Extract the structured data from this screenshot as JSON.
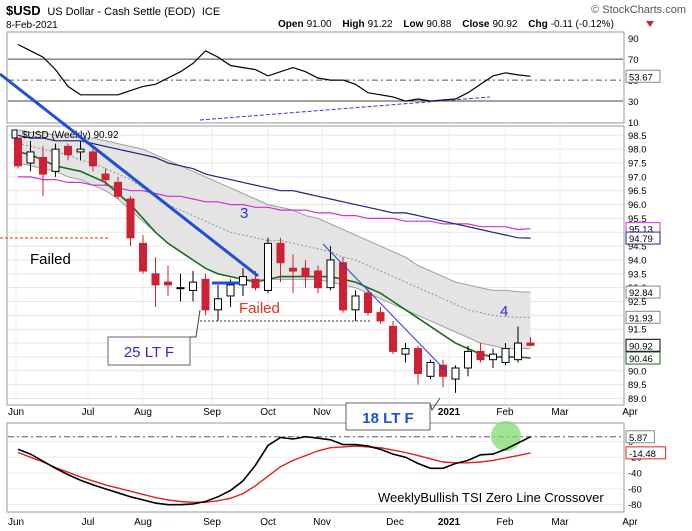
{
  "header": {
    "symbol": "$USD",
    "name": "US Dollar - Cash Settle (EOD)",
    "exchange": "ICE",
    "date": "8-Feb-2021",
    "brand": "© StockCharts.com",
    "open_label": "Open",
    "open": "91.00",
    "high_label": "High",
    "high": "91.22",
    "low_label": "Low",
    "low": "90.88",
    "close_label": "Close",
    "close": "90.92",
    "chg_label": "Chg",
    "chg": "-0.11 (-0.12%)"
  },
  "colors": {
    "up_candle": "#ffffff",
    "down_candle": "#cc2233",
    "ma_green": "#1a6b1a",
    "ma_navy": "#1a237e",
    "ma_magenta": "#cc33cc",
    "trend_blue": "#1f4fd6",
    "annotation_red": "#dd3322",
    "annotation_blue": "#2f2fc8"
  },
  "chart_data": [
    {
      "type": "line",
      "panel": "top-indicator",
      "ylim": [
        10,
        95
      ],
      "y_ticks": [
        "90",
        "70",
        "50",
        "30",
        "10"
      ],
      "levels": [
        70,
        50,
        30
      ],
      "last_value_label": "53.67",
      "y": [
        84,
        78,
        72,
        60,
        44,
        36,
        36,
        36,
        36,
        40,
        44,
        46,
        52,
        58,
        66,
        78,
        72,
        64,
        62,
        60,
        54,
        58,
        62,
        58,
        52,
        50,
        50,
        46,
        38,
        36,
        34,
        30,
        32,
        30,
        31,
        32,
        38,
        46,
        54,
        57,
        55,
        53.67
      ]
    },
    {
      "type": "candlestick",
      "panel": "price",
      "legend": "$USD (Weekly) 90.92",
      "ylim": [
        88.8,
        98.8
      ],
      "y_ticks": [
        "98.5",
        "98.0",
        "97.5",
        "97.0",
        "96.5",
        "96.0",
        "95.5",
        "95.0",
        "94.5",
        "94.0",
        "93.5",
        "93.0",
        "92.5",
        "92.0",
        "91.5",
        "91.0",
        "90.5",
        "90.0",
        "89.5",
        "89.0"
      ],
      "x_ticks": [
        "Jun",
        "Jul",
        "Aug",
        "Sep",
        "Oct",
        "Nov",
        "Dec",
        "2021",
        "Feb",
        "Mar",
        "Apr"
      ],
      "right_labels": [
        "95.13",
        "94.79",
        "92.84",
        "91.93",
        "90.92",
        "90.46"
      ],
      "ohlc": [
        [
          98.4,
          98.4,
          97.3,
          97.4
        ],
        [
          97.5,
          98.3,
          97.2,
          97.9
        ],
        [
          97.7,
          98.1,
          96.3,
          97.1
        ],
        [
          97.2,
          98.2,
          97.0,
          98.0
        ],
        [
          98.1,
          98.2,
          97.6,
          97.8
        ],
        [
          97.9,
          98.3,
          97.6,
          98.0
        ],
        [
          97.9,
          98.0,
          97.2,
          97.4
        ],
        [
          97.1,
          97.3,
          96.7,
          96.9
        ],
        [
          96.8,
          97.0,
          96.2,
          96.3
        ],
        [
          96.2,
          96.3,
          94.5,
          94.8
        ],
        [
          94.6,
          94.9,
          93.5,
          93.6
        ],
        [
          93.5,
          94.1,
          92.3,
          93.1
        ],
        [
          93.2,
          93.8,
          92.7,
          93.1
        ],
        [
          93.0,
          93.5,
          92.5,
          93.0
        ],
        [
          92.9,
          93.6,
          92.5,
          93.2
        ],
        [
          93.3,
          93.5,
          92.0,
          92.2
        ],
        [
          92.2,
          93.1,
          91.8,
          92.6
        ],
        [
          92.7,
          93.3,
          92.3,
          93.1
        ],
        [
          93.1,
          93.7,
          92.7,
          93.4
        ],
        [
          93.3,
          93.6,
          92.9,
          93.0
        ],
        [
          92.9,
          94.8,
          92.8,
          94.6
        ],
        [
          94.6,
          94.8,
          93.2,
          93.9
        ],
        [
          93.7,
          94.2,
          92.8,
          93.6
        ],
        [
          93.7,
          94.0,
          93.0,
          93.4
        ],
        [
          93.6,
          93.8,
          92.8,
          93.0
        ],
        [
          93.0,
          94.5,
          92.9,
          94.0
        ],
        [
          93.9,
          94.1,
          92.1,
          92.2
        ],
        [
          92.2,
          92.9,
          91.8,
          92.7
        ],
        [
          92.8,
          93.0,
          92.0,
          92.1
        ],
        [
          92.1,
          92.3,
          91.7,
          91.8
        ],
        [
          91.6,
          91.8,
          90.6,
          90.7
        ],
        [
          90.6,
          91.0,
          90.3,
          90.8
        ],
        [
          90.8,
          90.9,
          89.5,
          89.9
        ],
        [
          89.8,
          90.4,
          89.7,
          90.3
        ],
        [
          90.2,
          90.4,
          89.4,
          89.8
        ],
        [
          89.7,
          90.2,
          89.2,
          90.1
        ],
        [
          90.1,
          90.9,
          89.8,
          90.7
        ],
        [
          90.7,
          91.0,
          90.3,
          90.4
        ],
        [
          90.4,
          90.8,
          90.1,
          90.6
        ],
        [
          90.3,
          91.0,
          90.2,
          90.8
        ],
        [
          90.4,
          91.6,
          90.3,
          91.0
        ],
        [
          91.0,
          91.22,
          90.88,
          90.92
        ]
      ],
      "overlays": [
        {
          "name": "ma_green",
          "y": [
            97.9,
            97.8,
            97.6,
            97.4,
            97.3,
            97.2,
            97.0,
            96.8,
            96.4,
            96.0,
            95.5,
            95.0,
            94.6,
            94.3,
            94.0,
            93.7,
            93.5,
            93.4,
            93.3,
            93.2,
            93.3,
            93.4,
            93.4,
            93.4,
            93.4,
            93.4,
            93.3,
            93.2,
            93.0,
            92.8,
            92.5,
            92.2,
            91.9,
            91.6,
            91.3,
            91.0,
            90.8,
            90.6,
            90.5,
            90.5,
            90.5,
            90.46
          ]
        },
        {
          "name": "ma_navy",
          "y": [
            98.5,
            98.4,
            98.4,
            98.3,
            98.3,
            98.3,
            98.2,
            98.1,
            98.0,
            97.9,
            97.8,
            97.7,
            97.5,
            97.4,
            97.3,
            97.1,
            97.0,
            96.9,
            96.8,
            96.7,
            96.6,
            96.5,
            96.5,
            96.4,
            96.3,
            96.2,
            96.1,
            96.0,
            95.9,
            95.8,
            95.7,
            95.7,
            95.6,
            95.5,
            95.4,
            95.3,
            95.2,
            95.1,
            95.0,
            94.9,
            94.8,
            94.79
          ]
        },
        {
          "name": "ma_magenta",
          "y": [
            97.0,
            97.0,
            96.9,
            96.9,
            96.8,
            96.8,
            96.7,
            96.7,
            96.6,
            96.5,
            96.5,
            96.4,
            96.3,
            96.3,
            96.2,
            96.1,
            96.1,
            96.0,
            96.0,
            95.9,
            95.9,
            95.8,
            95.8,
            95.8,
            95.7,
            95.7,
            95.6,
            95.6,
            95.5,
            95.5,
            95.5,
            95.4,
            95.4,
            95.4,
            95.3,
            95.3,
            95.3,
            95.2,
            95.2,
            95.2,
            95.1,
            95.13
          ]
        },
        {
          "name": "band_mid",
          "y": [
            98.2,
            98.1,
            98.0,
            97.9,
            97.8,
            97.6,
            97.5,
            97.3,
            97.1,
            96.9,
            96.6,
            96.3,
            96.0,
            95.8,
            95.6,
            95.4,
            95.2,
            95.0,
            94.9,
            94.8,
            94.7,
            94.7,
            94.6,
            94.5,
            94.4,
            94.3,
            94.1,
            94.0,
            93.8,
            93.6,
            93.4,
            93.2,
            93.0,
            92.8,
            92.6,
            92.4,
            92.2,
            92.1,
            92.0,
            91.95,
            91.93,
            91.93
          ]
        },
        {
          "name": "band_upper",
          "y": [
            98.7,
            98.6,
            98.6,
            98.5,
            98.5,
            98.4,
            98.4,
            98.3,
            98.2,
            98.1,
            98.0,
            97.8,
            97.6,
            97.4,
            97.2,
            97.0,
            96.8,
            96.6,
            96.4,
            96.2,
            96.0,
            95.9,
            95.8,
            95.6,
            95.5,
            95.3,
            95.1,
            94.9,
            94.7,
            94.5,
            94.3,
            94.1,
            93.8,
            93.6,
            93.4,
            93.2,
            93.1,
            93.0,
            92.9,
            92.9,
            92.85,
            92.84
          ]
        },
        {
          "name": "band_lower",
          "y": [
            97.5,
            97.4,
            97.3,
            97.2,
            97.0,
            96.9,
            96.7,
            96.5,
            96.2,
            95.8,
            95.4,
            95.0,
            94.6,
            94.3,
            94.0,
            93.7,
            93.5,
            93.4,
            93.3,
            93.3,
            93.3,
            93.3,
            93.3,
            93.3,
            93.3,
            93.2,
            93.1,
            93.0,
            92.8,
            92.6,
            92.4,
            92.2,
            92.0,
            91.8,
            91.6,
            91.4,
            91.2,
            91.0,
            90.9,
            90.8,
            90.8,
            90.8
          ]
        }
      ],
      "annotations": {
        "failed_left": "Failed",
        "failed_mid": "Failed",
        "wave3": "3",
        "wave4": "4",
        "box1": "25 LT F",
        "box2": "18  LT F"
      }
    },
    {
      "type": "line",
      "panel": "tsi",
      "ylim": [
        -88,
        22
      ],
      "y_ticks": [
        "0",
        "-20",
        "-40",
        "-60",
        "-80"
      ],
      "value_labels": [
        "5.87",
        "-14.48"
      ],
      "annotation": "WeeklyBullish TSI Zero Line Crossover",
      "x_ticks": [
        "Jun",
        "Jul",
        "Aug",
        "Sep",
        "Oct",
        "Nov",
        "Dec",
        "2021",
        "Feb",
        "Mar",
        "Apr"
      ],
      "series": [
        {
          "name": "tsi",
          "y": [
            -10,
            -16,
            -25,
            -34,
            -42,
            -49,
            -55,
            -60,
            -65,
            -70,
            -74,
            -78,
            -80,
            -80,
            -79,
            -76,
            -70,
            -62,
            -50,
            -30,
            -5,
            5,
            3,
            6,
            4,
            2,
            -4,
            -4,
            -6,
            -10,
            -16,
            -20,
            -28,
            -34,
            -34,
            -28,
            -24,
            -17,
            -16,
            -10,
            -2,
            5.87
          ]
        },
        {
          "name": "signal",
          "y": [
            -14,
            -20,
            -26,
            -33,
            -39,
            -45,
            -50,
            -55,
            -59,
            -63,
            -67,
            -71,
            -74,
            -76,
            -77,
            -77,
            -75,
            -72,
            -66,
            -56,
            -44,
            -32,
            -24,
            -18,
            -12,
            -8,
            -7,
            -6,
            -7,
            -8,
            -11,
            -14,
            -18,
            -22,
            -26,
            -27,
            -27,
            -26,
            -24,
            -21,
            -18,
            -14.48
          ]
        }
      ]
    }
  ]
}
